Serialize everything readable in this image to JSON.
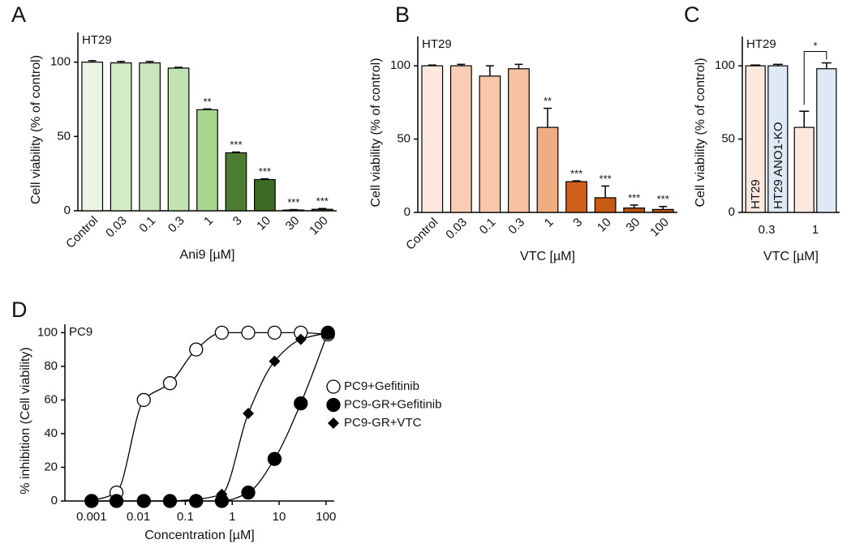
{
  "chart_data": [
    {
      "type": "bar",
      "panel": "A",
      "annotation": "HT29",
      "xlabel": "Ani9 [µM]",
      "ylabel": "Cell viability (% of control)",
      "categories": [
        "Control",
        "0.03",
        "0.1",
        "0.3",
        "1",
        "3",
        "10",
        "30",
        "100"
      ],
      "values": [
        100,
        99.5,
        99.5,
        96,
        68,
        39,
        21,
        0.5,
        1
      ],
      "errors": [
        1,
        1,
        1,
        0.5,
        0.5,
        0.5,
        0.5,
        0.3,
        0.5
      ],
      "annotations": [
        null,
        null,
        null,
        null,
        "**",
        "***",
        "***",
        "***",
        "***"
      ],
      "colors": [
        "#eaf5e3",
        "#d4ebc8",
        "#cbe6bd",
        "#c3e2b3",
        "#a6d68e",
        "#4d7d32",
        "#3d6b26",
        "#3d6b26",
        "#3d6b26"
      ],
      "ylim": [
        0,
        120
      ],
      "yticks": [
        0,
        50,
        100
      ]
    },
    {
      "type": "bar",
      "panel": "B",
      "annotation": "HT29",
      "xlabel": "VTC [µM]",
      "ylabel": "Cell viability (% of control)",
      "categories": [
        "Control",
        "0.03",
        "0.1",
        "0.3",
        "1",
        "3",
        "10",
        "30",
        "100"
      ],
      "values": [
        100,
        100,
        93,
        98,
        58,
        21,
        10,
        3,
        2
      ],
      "errors": [
        0.5,
        1,
        7,
        3,
        13,
        0.5,
        8,
        2,
        2
      ],
      "annotations": [
        null,
        null,
        null,
        null,
        "**",
        "***",
        "***",
        "***",
        "***"
      ],
      "colors": [
        "#fde8df",
        "#f9cdb4",
        "#f8c7ab",
        "#f7c2a3",
        "#f2ac82",
        "#d0601b",
        "#c85a14",
        "#b8520f",
        "#b8520f"
      ],
      "ylim": [
        0,
        120
      ],
      "yticks": [
        0,
        50,
        100
      ]
    },
    {
      "type": "grouped-bar",
      "panel": "C",
      "annotation": "HT29",
      "xlabel": "VTC [µM]",
      "ylabel": "Cell viability (% of control)",
      "categories": [
        "0.3",
        "1"
      ],
      "series": [
        {
          "name": "HT29",
          "color": "#fde8df",
          "values": [
            100,
            58
          ],
          "errors": [
            0.5,
            11
          ]
        },
        {
          "name": "HT29 ANO1-KO",
          "color": "#dde9f5",
          "values": [
            100,
            98
          ],
          "errors": [
            1,
            4
          ]
        }
      ],
      "brackets": [
        {
          "category": 1,
          "label": "*"
        }
      ],
      "ylim": [
        0,
        120
      ],
      "yticks": [
        0,
        50,
        100
      ]
    },
    {
      "type": "scatter",
      "panel": "D",
      "annotation": "PC9",
      "xlabel": "Concentration [µM]",
      "ylabel": "% inhibition (Cell viability)",
      "xscale": "log",
      "legend": "right",
      "x": [
        0.001,
        0.0034,
        0.013,
        0.047,
        0.17,
        0.6,
        2.2,
        8,
        29,
        110
      ],
      "series": [
        {
          "name": "PC9+Gefitinib",
          "marker": "circle-open",
          "color": "#000000",
          "values": [
            0,
            5,
            60,
            70,
            90,
            100,
            100,
            100,
            100,
            99
          ]
        },
        {
          "name": "PC9-GR+Gefitinib",
          "marker": "circle",
          "color": "#000000",
          "values": [
            0,
            0,
            0,
            0,
            0,
            0,
            5,
            25,
            58,
            100
          ]
        },
        {
          "name": "PC9-GR+VTC",
          "marker": "diamond",
          "color": "#000000",
          "values": [
            0,
            0,
            0,
            0,
            1,
            4,
            52,
            83,
            96,
            100
          ]
        }
      ],
      "xlim": [
        0.00027,
        150
      ],
      "xticks": [
        0.001,
        0.01,
        0.1,
        1,
        10,
        100
      ],
      "ylim": [
        0,
        105
      ],
      "yticks": [
        0,
        20,
        40,
        60,
        80,
        100
      ]
    }
  ]
}
